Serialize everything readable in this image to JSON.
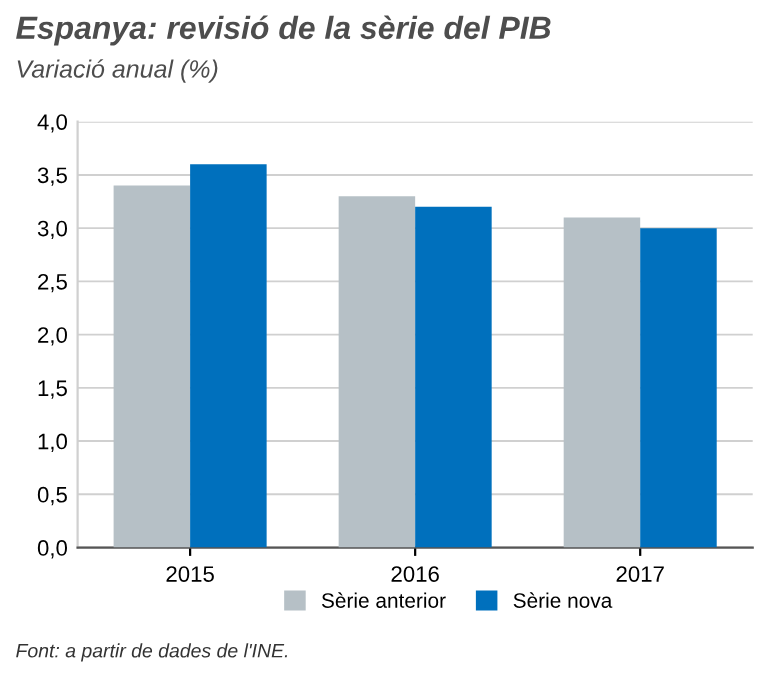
{
  "chart_data": {
    "type": "bar",
    "title": "Espanya: revisió de la sèrie del PIB",
    "subtitle": "Variació anual (%)",
    "categories": [
      "2015",
      "2016",
      "2017"
    ],
    "series": [
      {
        "name": "Sèrie anterior",
        "color": "#b6c0c6",
        "values": [
          3.4,
          3.3,
          3.1
        ]
      },
      {
        "name": "Sèrie nova",
        "color": "#0070bd",
        "values": [
          3.6,
          3.2,
          3.0
        ]
      }
    ],
    "ylim": [
      0,
      4
    ],
    "yticks": [
      {
        "value": 0,
        "label": "0,0"
      },
      {
        "value": 0.5,
        "label": "0,5"
      },
      {
        "value": 1,
        "label": "1,0"
      },
      {
        "value": 1.5,
        "label": "1,5"
      },
      {
        "value": 2,
        "label": "2,0"
      },
      {
        "value": 2.5,
        "label": "2,5"
      },
      {
        "value": 3,
        "label": "3,0"
      },
      {
        "value": 3.5,
        "label": "3,5"
      },
      {
        "value": 4,
        "label": "4,0"
      }
    ],
    "grid": "y",
    "legend": "bottom",
    "annotations": [
      "Font: a partir de dades de l'INE."
    ]
  }
}
